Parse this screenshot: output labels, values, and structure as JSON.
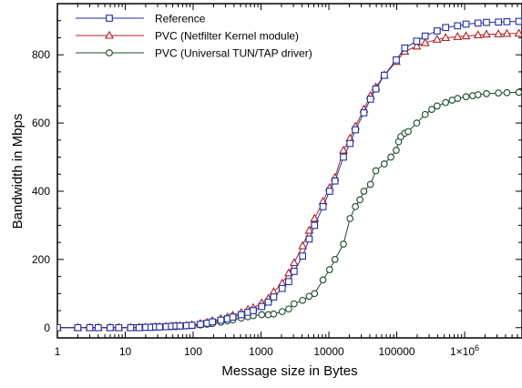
{
  "chart_data": {
    "type": "line",
    "xlabel": "Message size in Bytes",
    "ylabel": "Bandwidth in Mbps",
    "x_scale": "log",
    "xlim": [
      1,
      7000000
    ],
    "ylim": [
      -30,
      950
    ],
    "x_ticks": [
      {
        "value": 1,
        "label": "1"
      },
      {
        "value": 10,
        "label": "10"
      },
      {
        "value": 100,
        "label": "100"
      },
      {
        "value": 1000,
        "label": "1000"
      },
      {
        "value": 10000,
        "label": "10000"
      },
      {
        "value": 100000,
        "label": "100000"
      },
      {
        "value": 1000000,
        "label": "1×10",
        "sup": "6"
      }
    ],
    "y_ticks": [
      {
        "value": 0,
        "label": "0"
      },
      {
        "value": 200,
        "label": "200"
      },
      {
        "value": 400,
        "label": "400"
      },
      {
        "value": 600,
        "label": "600"
      },
      {
        "value": 800,
        "label": "800"
      }
    ],
    "grid": false,
    "legend_position": "top-left",
    "series": [
      {
        "name": "Reference",
        "color": "#1f2fa0",
        "marker": "square",
        "points": [
          [
            1,
            0
          ],
          [
            2,
            0
          ],
          [
            3,
            0
          ],
          [
            4,
            0
          ],
          [
            6,
            0
          ],
          [
            8,
            0
          ],
          [
            12,
            0
          ],
          [
            16,
            0
          ],
          [
            20,
            1
          ],
          [
            24,
            1
          ],
          [
            28,
            2
          ],
          [
            32,
            2
          ],
          [
            40,
            3
          ],
          [
            48,
            4
          ],
          [
            56,
            5
          ],
          [
            64,
            5
          ],
          [
            80,
            6
          ],
          [
            96,
            7
          ],
          [
            128,
            10
          ],
          [
            160,
            13
          ],
          [
            192,
            17
          ],
          [
            256,
            22
          ],
          [
            320,
            26
          ],
          [
            384,
            31
          ],
          [
            512,
            38
          ],
          [
            640,
            45
          ],
          [
            768,
            50
          ],
          [
            1024,
            62
          ],
          [
            1280,
            75
          ],
          [
            1536,
            90
          ],
          [
            2048,
            115
          ],
          [
            2560,
            135
          ],
          [
            3072,
            165
          ],
          [
            4096,
            210
          ],
          [
            5120,
            260
          ],
          [
            6144,
            300
          ],
          [
            8192,
            355
          ],
          [
            10240,
            400
          ],
          [
            12288,
            430
          ],
          [
            16384,
            500
          ],
          [
            20480,
            540
          ],
          [
            24576,
            580
          ],
          [
            32768,
            630
          ],
          [
            40960,
            670
          ],
          [
            49152,
            700
          ],
          [
            65536,
            740
          ],
          [
            98304,
            785
          ],
          [
            131072,
            820
          ],
          [
            196608,
            840
          ],
          [
            262144,
            855
          ],
          [
            393216,
            870
          ],
          [
            524288,
            880
          ],
          [
            786432,
            885
          ],
          [
            1048576,
            890
          ],
          [
            1572864,
            893
          ],
          [
            2097152,
            895
          ],
          [
            3145728,
            896
          ],
          [
            4194304,
            897
          ],
          [
            6291456,
            898
          ]
        ]
      },
      {
        "name": "PVC (Netfilter Kernel module)",
        "color": "#b02020",
        "marker": "triangle",
        "points": [
          [
            1,
            0
          ],
          [
            2,
            0
          ],
          [
            3,
            0
          ],
          [
            4,
            0
          ],
          [
            6,
            0
          ],
          [
            8,
            0
          ],
          [
            12,
            0
          ],
          [
            16,
            0
          ],
          [
            20,
            1
          ],
          [
            24,
            1
          ],
          [
            28,
            2
          ],
          [
            32,
            2
          ],
          [
            40,
            3
          ],
          [
            48,
            4
          ],
          [
            56,
            5
          ],
          [
            64,
            5
          ],
          [
            80,
            6
          ],
          [
            96,
            8
          ],
          [
            128,
            12
          ],
          [
            160,
            15
          ],
          [
            192,
            20
          ],
          [
            256,
            26
          ],
          [
            320,
            31
          ],
          [
            384,
            36
          ],
          [
            512,
            44
          ],
          [
            640,
            53
          ],
          [
            768,
            58
          ],
          [
            1024,
            72
          ],
          [
            1280,
            85
          ],
          [
            1536,
            105
          ],
          [
            2048,
            130
          ],
          [
            2560,
            160
          ],
          [
            3072,
            190
          ],
          [
            4096,
            240
          ],
          [
            5120,
            285
          ],
          [
            6144,
            320
          ],
          [
            8192,
            370
          ],
          [
            10240,
            410
          ],
          [
            12288,
            440
          ],
          [
            16384,
            520
          ],
          [
            20480,
            555
          ],
          [
            24576,
            590
          ],
          [
            32768,
            640
          ],
          [
            40960,
            680
          ],
          [
            49152,
            705
          ],
          [
            65536,
            740
          ],
          [
            98304,
            780
          ],
          [
            131072,
            810
          ],
          [
            196608,
            825
          ],
          [
            262144,
            835
          ],
          [
            393216,
            845
          ],
          [
            524288,
            850
          ],
          [
            786432,
            853
          ],
          [
            1048576,
            855
          ],
          [
            1572864,
            858
          ],
          [
            2097152,
            860
          ],
          [
            3145728,
            861
          ],
          [
            4194304,
            862
          ],
          [
            6291456,
            863
          ]
        ]
      },
      {
        "name": "PVC (Universal TUN/TAP driver)",
        "color": "#1a4a2a",
        "marker": "circle",
        "points": [
          [
            1,
            0
          ],
          [
            2,
            0
          ],
          [
            3,
            0
          ],
          [
            4,
            0
          ],
          [
            6,
            0
          ],
          [
            8,
            0
          ],
          [
            12,
            0
          ],
          [
            14,
            0
          ],
          [
            16,
            1
          ],
          [
            18,
            1
          ],
          [
            20,
            1
          ],
          [
            24,
            1
          ],
          [
            28,
            2
          ],
          [
            32,
            2
          ],
          [
            40,
            3
          ],
          [
            48,
            3
          ],
          [
            56,
            3
          ],
          [
            64,
            4
          ],
          [
            80,
            5
          ],
          [
            96,
            6
          ],
          [
            128,
            8
          ],
          [
            160,
            10
          ],
          [
            192,
            12
          ],
          [
            256,
            16
          ],
          [
            320,
            20
          ],
          [
            384,
            23
          ],
          [
            512,
            28
          ],
          [
            640,
            32
          ],
          [
            768,
            35
          ],
          [
            1024,
            38
          ],
          [
            1280,
            38
          ],
          [
            1536,
            40
          ],
          [
            2048,
            47
          ],
          [
            2560,
            55
          ],
          [
            3072,
            70
          ],
          [
            4096,
            80
          ],
          [
            5120,
            92
          ],
          [
            6144,
            100
          ],
          [
            8192,
            140
          ],
          [
            10240,
            170
          ],
          [
            12288,
            200
          ],
          [
            16384,
            245
          ],
          [
            20480,
            320
          ],
          [
            24576,
            355
          ],
          [
            28672,
            375
          ],
          [
            32768,
            400
          ],
          [
            40960,
            420
          ],
          [
            49152,
            460
          ],
          [
            65536,
            480
          ],
          [
            81920,
            500
          ],
          [
            98304,
            520
          ],
          [
            106496,
            545
          ],
          [
            114688,
            560
          ],
          [
            131072,
            570
          ],
          [
            147456,
            575
          ],
          [
            196608,
            600
          ],
          [
            262144,
            625
          ],
          [
            327680,
            640
          ],
          [
            393216,
            650
          ],
          [
            524288,
            660
          ],
          [
            655360,
            667
          ],
          [
            786432,
            672
          ],
          [
            1048576,
            677
          ],
          [
            1310720,
            680
          ],
          [
            1572864,
            683
          ],
          [
            2097152,
            686
          ],
          [
            3145728,
            688
          ],
          [
            4194304,
            689
          ],
          [
            6291456,
            690
          ]
        ]
      }
    ]
  }
}
